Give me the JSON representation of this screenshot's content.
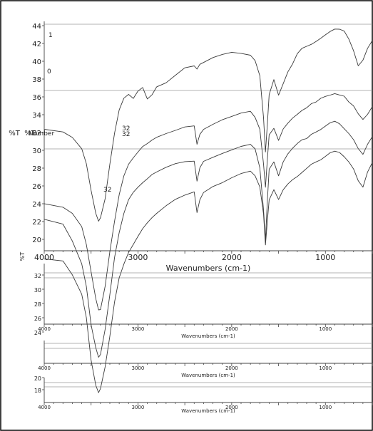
{
  "chart_data": {
    "type": "line",
    "colors": {
      "paper": "#ffffff",
      "ink": "#3a3a3a",
      "frame": "#000000"
    },
    "panels": [
      {
        "xlabel": "Wavenumbers (cm-1)",
        "xlim": [
          4000,
          500
        ],
        "x_ticks": [
          {
            "label": "4000",
            "value": 4000
          },
          {
            "label": "3000",
            "value": 3000
          },
          {
            "label": "2000",
            "value": 2000
          },
          {
            "label": "1000",
            "value": 1000
          }
        ],
        "ylabel": "%T",
        "ylim": [
          18,
          45
        ],
        "y_ticks": [
          {
            "label": "44",
            "value": 44
          },
          {
            "label": "42",
            "value": 42
          },
          {
            "label": "40",
            "value": 40
          },
          {
            "label": "38",
            "value": 38
          },
          {
            "label": "36",
            "value": 36
          },
          {
            "label": "34",
            "value": 34
          },
          {
            "label": "32",
            "value": 32
          },
          {
            "label": "30",
            "value": 30
          },
          {
            "label": "28",
            "value": 28
          },
          {
            "label": "26",
            "value": 26
          },
          {
            "label": "24",
            "value": 24
          },
          {
            "label": "22",
            "value": 22
          },
          {
            "label": "20",
            "value": 20
          }
        ]
      },
      {
        "xlabel": "Wavenumbers (cm-1)",
        "xlim": [
          4000,
          500
        ],
        "x_ticks": [
          {
            "label": "4000",
            "value": 4000
          },
          {
            "label": "3000",
            "value": 3000
          },
          {
            "label": "2000",
            "value": 2000
          },
          {
            "label": "1000",
            "value": 1000
          }
        ],
        "ylabel": "%T",
        "y_ticks": [
          {
            "label": "32",
            "value": 32
          },
          {
            "label": "30",
            "value": 30
          },
          {
            "label": "28",
            "value": 28
          },
          {
            "label": "26",
            "value": 26
          },
          {
            "label": "24",
            "value": 24
          }
        ]
      },
      {
        "xlabel": "Wavenumbers (cm-1)",
        "xlim": [
          4000,
          500
        ],
        "x_ticks": [
          {
            "label": "4000",
            "value": 4000
          },
          {
            "label": "3000",
            "value": 3000
          },
          {
            "label": "2000",
            "value": 2000
          },
          {
            "label": "1000",
            "value": 1000
          }
        ],
        "ylabel": "",
        "y_ticks": [
          {
            "label": "20",
            "value": 20
          },
          {
            "label": "18",
            "value": 18
          }
        ]
      },
      {
        "xlabel": "Wavenumbers (cm-1)",
        "xlim": [
          4000,
          500
        ],
        "x_ticks": [
          {
            "label": "4000",
            "value": 4000
          },
          {
            "label": "3000",
            "value": 3000
          },
          {
            "label": "2000",
            "value": 2000
          },
          {
            "label": "1000",
            "value": 1000
          }
        ],
        "ylabel": "",
        "y_ticks": []
      }
    ],
    "annotations": [
      "%T",
      "Number",
      "1",
      "0",
      "32",
      "32",
      "32"
    ],
    "series": [
      {
        "x": [
          4000,
          3800,
          3700,
          3600,
          3550,
          3500,
          3450,
          3420,
          3400,
          3350,
          3300,
          3250,
          3200,
          3150,
          3100,
          3050,
          3000,
          2950,
          2900,
          2850,
          2800,
          2700,
          2600,
          2500,
          2400,
          2370,
          2340,
          2300,
          2200,
          2100,
          2000,
          1900,
          1800,
          1750,
          1700,
          1660,
          1640,
          1620,
          1600,
          1550,
          1500,
          1450,
          1400,
          1350,
          1300,
          1250,
          1200,
          1150,
          1100,
          1050,
          1000,
          950,
          900,
          850,
          800,
          750,
          700,
          650,
          600,
          550,
          500
        ],
        "y": [
          31.5,
          31.2,
          30.5,
          29,
          27,
          23.5,
          20.5,
          19.5,
          20,
          22.5,
          27,
          31,
          34,
          35.5,
          36,
          35.5,
          36.5,
          37,
          35.5,
          36,
          37,
          37.5,
          38.5,
          39.5,
          39.8,
          39.4,
          40,
          40.2,
          40.8,
          41.2,
          41.5,
          41.4,
          41.2,
          40.5,
          38.5,
          33,
          28.5,
          32,
          36,
          38,
          36,
          37.5,
          39,
          40,
          41.3,
          42,
          42.3,
          42.6,
          43,
          43.4,
          43.8,
          44.2,
          44.5,
          44.5,
          44.3,
          43.3,
          41.8,
          39.8,
          40.5,
          42,
          43
        ]
      },
      {
        "x": [
          4000,
          3800,
          3700,
          3600,
          3550,
          3500,
          3450,
          3420,
          3400,
          3350,
          3300,
          3250,
          3200,
          3150,
          3100,
          3050,
          3000,
          2950,
          2900,
          2850,
          2800,
          2700,
          2600,
          2500,
          2400,
          2370,
          2340,
          2300,
          2200,
          2100,
          2000,
          1900,
          1800,
          1750,
          1700,
          1660,
          1640,
          1620,
          1600,
          1550,
          1500,
          1450,
          1400,
          1350,
          1300,
          1250,
          1200,
          1150,
          1100,
          1050,
          1000,
          950,
          900,
          850,
          800,
          750,
          700,
          650,
          600,
          550,
          500
        ],
        "y": [
          21.8,
          21.3,
          20.5,
          18.8,
          16.5,
          13,
          9.5,
          8,
          8,
          11,
          15.5,
          19.5,
          23,
          25.5,
          27,
          27.8,
          28.5,
          29.2,
          29.6,
          30.1,
          30.5,
          31,
          31.4,
          31.8,
          31.9,
          29.5,
          30.8,
          31.5,
          32.2,
          32.8,
          33.2,
          33.6,
          33.8,
          33,
          31.5,
          27,
          24,
          27.5,
          30.8,
          31.6,
          30,
          31.5,
          32.3,
          33,
          33.5,
          34,
          34.3,
          34.8,
          35,
          35.5,
          35.8,
          36,
          36.2,
          36,
          35.8,
          35,
          34.5,
          33.5,
          32.8,
          33.5,
          34.5
        ]
      },
      {
        "x": [
          4000,
          3800,
          3700,
          3600,
          3550,
          3500,
          3450,
          3420,
          3400,
          3350,
          3300,
          3250,
          3200,
          3150,
          3100,
          3050,
          3000,
          2950,
          2900,
          2850,
          2800,
          2700,
          2600,
          2500,
          2400,
          2370,
          2340,
          2300,
          2200,
          2100,
          2000,
          1900,
          1800,
          1750,
          1700,
          1660,
          1640,
          1620,
          1600,
          1550,
          1500,
          1450,
          1400,
          1350,
          1300,
          1250,
          1200,
          1150,
          1100,
          1050,
          1000,
          950,
          900,
          850,
          800,
          750,
          700,
          650,
          600,
          550,
          500
        ],
        "y": [
          19.8,
          19.2,
          17,
          14,
          11,
          6,
          3,
          1.8,
          2.2,
          5.5,
          10,
          14.8,
          18,
          20.5,
          22.3,
          23.3,
          24,
          24.6,
          25.1,
          25.6,
          25.9,
          26.5,
          27,
          27.3,
          27.4,
          24.8,
          26.5,
          27.3,
          27.8,
          28.3,
          28.8,
          29.3,
          29.6,
          29,
          26.5,
          21,
          17,
          22,
          26.3,
          27.3,
          25.5,
          27.3,
          28.3,
          29,
          29.6,
          30.1,
          30.3,
          30.9,
          31.2,
          31.5,
          31.9,
          32.3,
          32.5,
          32.2,
          31.6,
          31,
          30.2,
          29,
          28.2,
          29.5,
          30.5
        ]
      },
      {
        "x": [
          4000,
          3800,
          3700,
          3600,
          3550,
          3500,
          3450,
          3420,
          3400,
          3350,
          3300,
          3250,
          3200,
          3150,
          3100,
          3050,
          3000,
          2950,
          2900,
          2850,
          2800,
          2700,
          2600,
          2500,
          2400,
          2370,
          2340,
          2300,
          2200,
          2100,
          2000,
          1900,
          1800,
          1750,
          1700,
          1660,
          1640,
          1620,
          1600,
          1550,
          1500,
          1450,
          1400,
          1350,
          1300,
          1250,
          1200,
          1150,
          1100,
          1050,
          1000,
          950,
          900,
          850,
          800,
          750,
          700,
          650,
          600,
          550,
          500
        ],
        "y": [
          14.6,
          14.3,
          12.5,
          10,
          7,
          1.5,
          -1.8,
          -2.8,
          -2.3,
          0.5,
          4.5,
          9,
          12.2,
          14,
          15.5,
          16.5,
          17.5,
          18.5,
          19.3,
          20,
          20.6,
          21.6,
          22.4,
          22.9,
          23.3,
          20.6,
          22.3,
          23.3,
          24.1,
          24.6,
          25.2,
          25.7,
          26,
          25.4,
          24,
          20.5,
          16.5,
          19.5,
          22.3,
          23.6,
          22.3,
          23.6,
          24.4,
          25,
          25.4,
          25.9,
          26.4,
          26.9,
          27.2,
          27.5,
          28,
          28.5,
          28.7,
          28.5,
          27.9,
          27.2,
          26.3,
          24.8,
          24,
          26,
          27.2
        ]
      }
    ]
  }
}
